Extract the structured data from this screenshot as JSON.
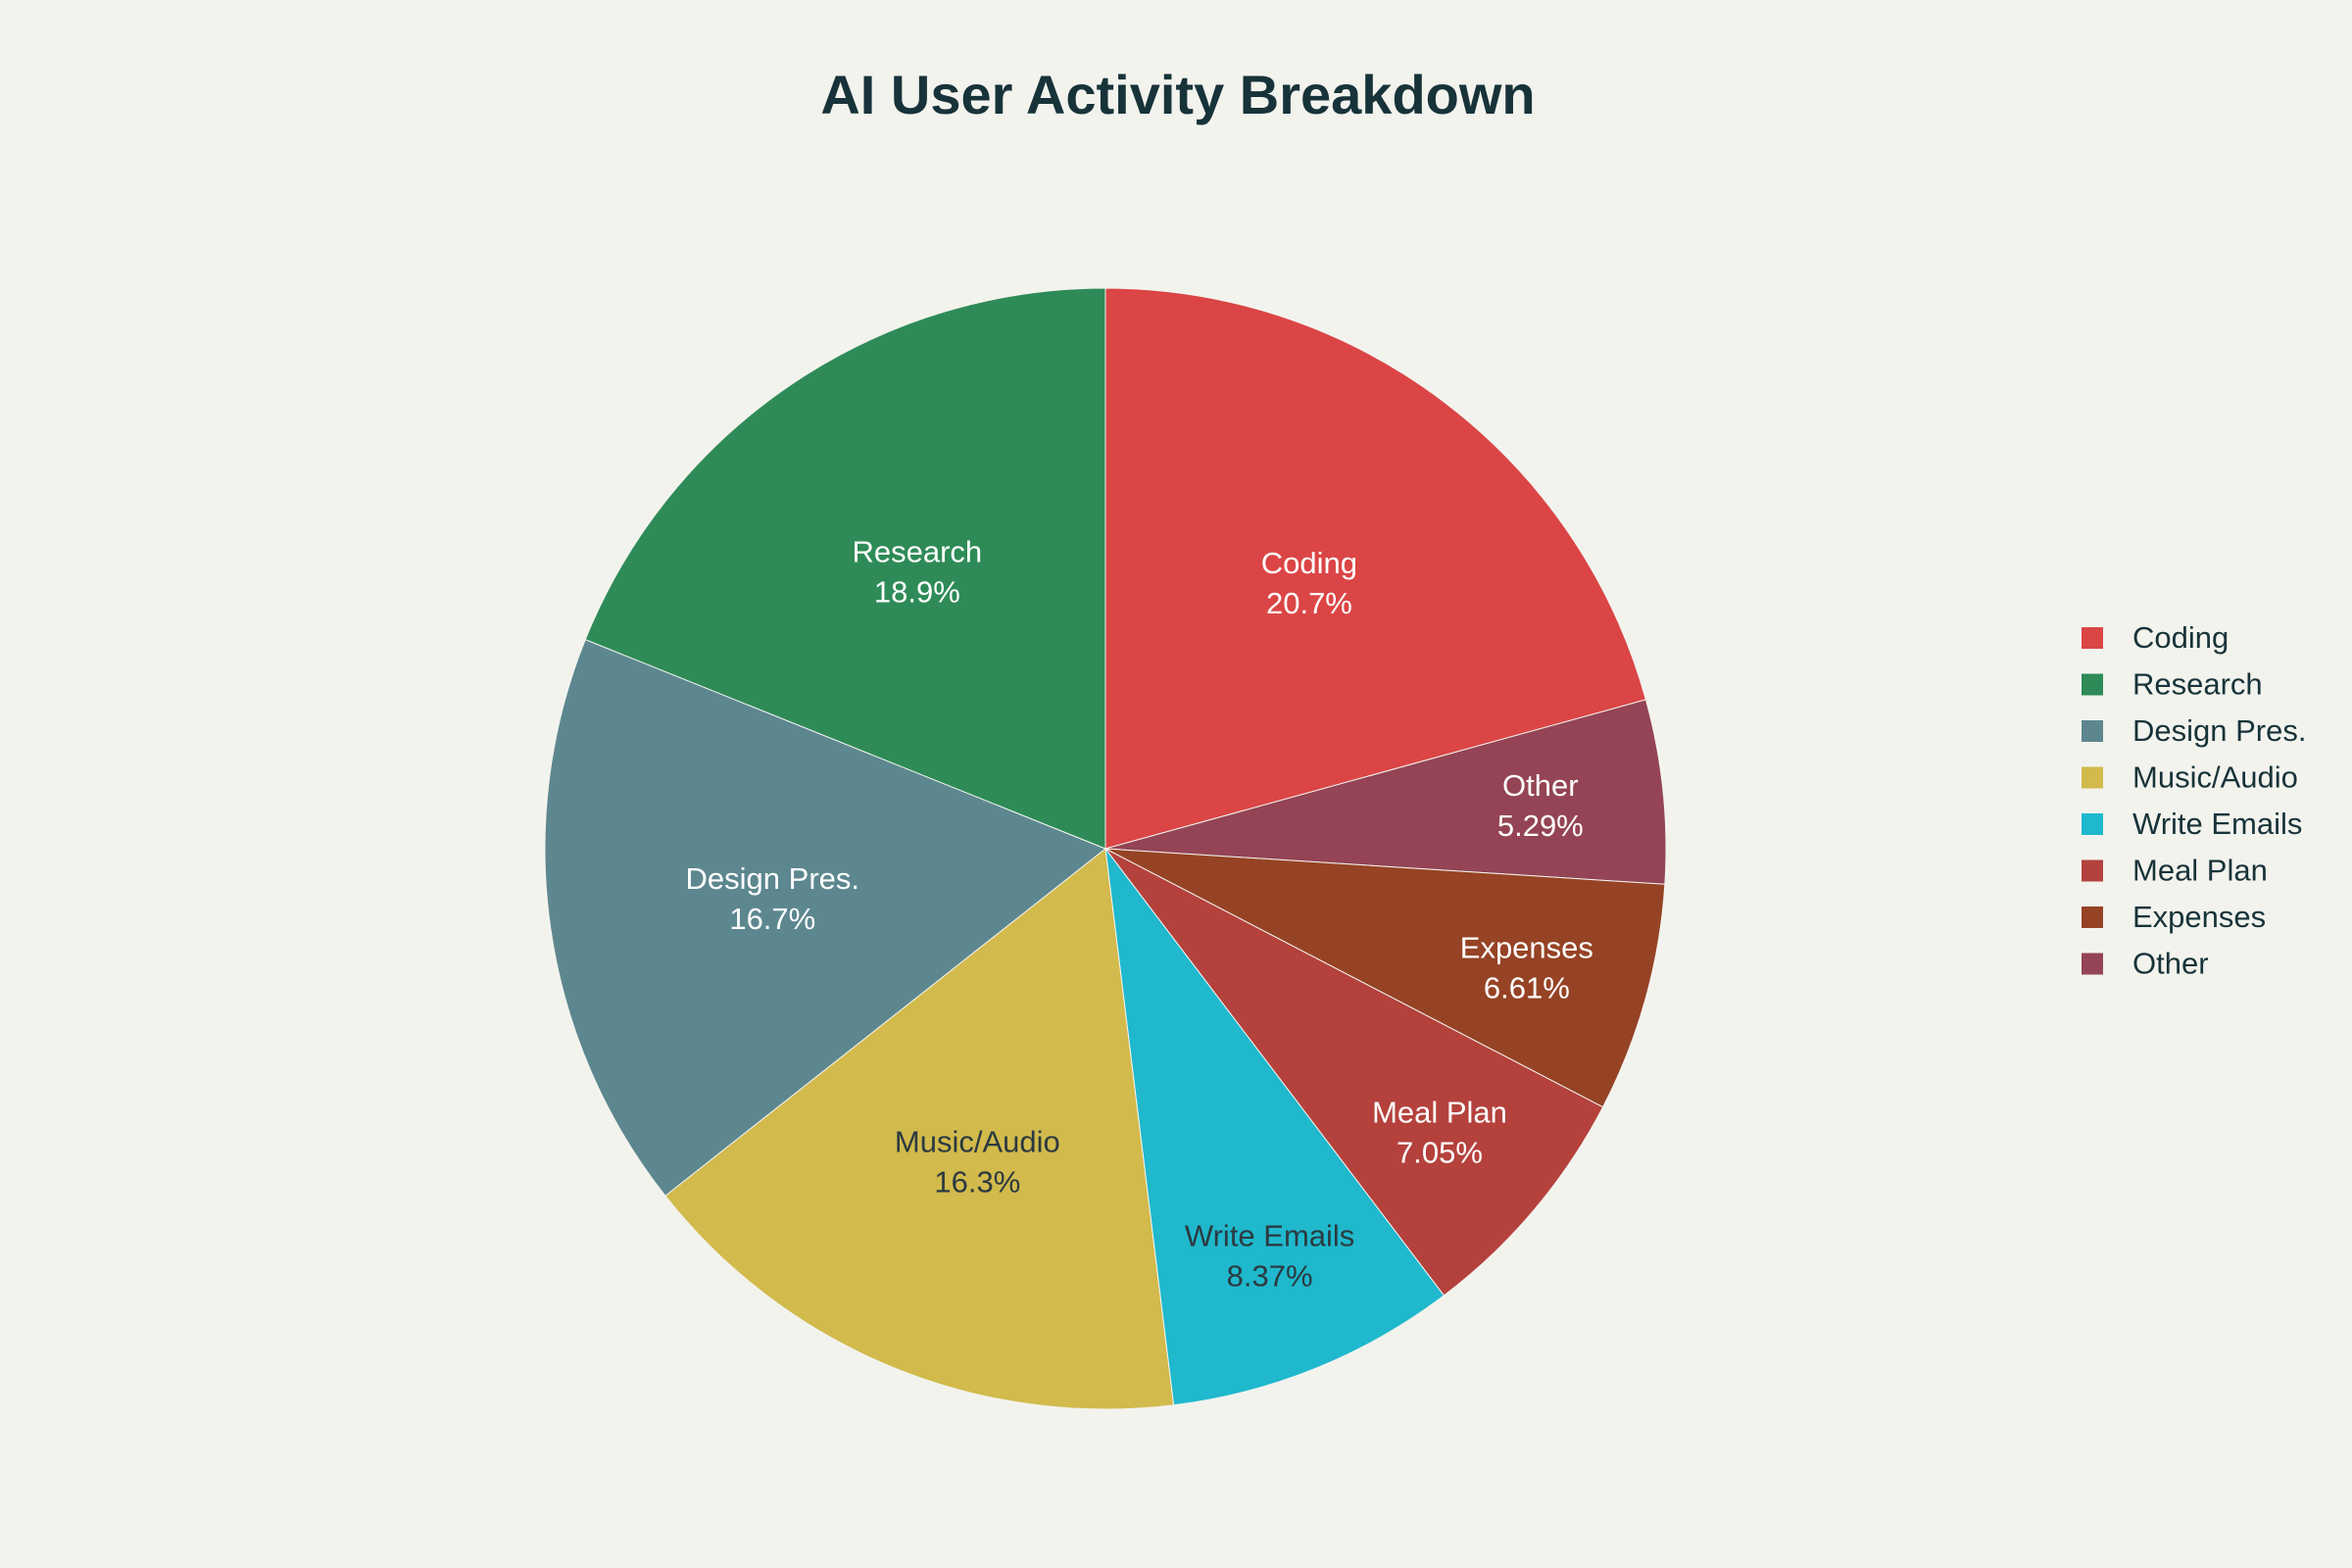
{
  "chart_data": {
    "type": "pie",
    "title": "AI User Activity Breakdown",
    "direction": "clockwise",
    "start": "12 o'clock",
    "legend_position": "right",
    "slices": [
      {
        "label": "Coding",
        "value": 20.7,
        "display": "20.7%",
        "color": "#db4545",
        "text_color": "#ffffff"
      },
      {
        "label": "Other",
        "value": 5.29,
        "display": "5.29%",
        "color": "#944454",
        "text_color": "#ffffff"
      },
      {
        "label": "Expenses",
        "value": 6.61,
        "display": "6.61%",
        "color": "#964325",
        "text_color": "#ffffff"
      },
      {
        "label": "Meal Plan",
        "value": 7.05,
        "display": "7.05%",
        "color": "#b4413c",
        "text_color": "#ffffff"
      },
      {
        "label": "Write Emails",
        "value": 8.37,
        "display": "8.37%",
        "color": "#1fb8cd",
        "text_color": "#2b3a40"
      },
      {
        "label": "Music/Audio",
        "value": 16.3,
        "display": "16.3%",
        "color": "#d2ba4c",
        "text_color": "#2b3a40"
      },
      {
        "label": "Design Pres.",
        "value": 16.7,
        "display": "16.7%",
        "color": "#5d878f",
        "text_color": "#ffffff"
      },
      {
        "label": "Research",
        "value": 18.9,
        "display": "18.9%",
        "color": "#2e8b57",
        "text_color": "#ffffff"
      }
    ],
    "legend": [
      {
        "label": "Coding",
        "color": "#db4545"
      },
      {
        "label": "Research",
        "color": "#2e8b57"
      },
      {
        "label": "Design Pres.",
        "color": "#5d878f"
      },
      {
        "label": "Music/Audio",
        "color": "#d2ba4c"
      },
      {
        "label": "Write Emails",
        "color": "#1fb8cd"
      },
      {
        "label": "Meal Plan",
        "color": "#b4413c"
      },
      {
        "label": "Expenses",
        "color": "#964325"
      },
      {
        "label": "Other",
        "color": "#944454"
      }
    ]
  }
}
